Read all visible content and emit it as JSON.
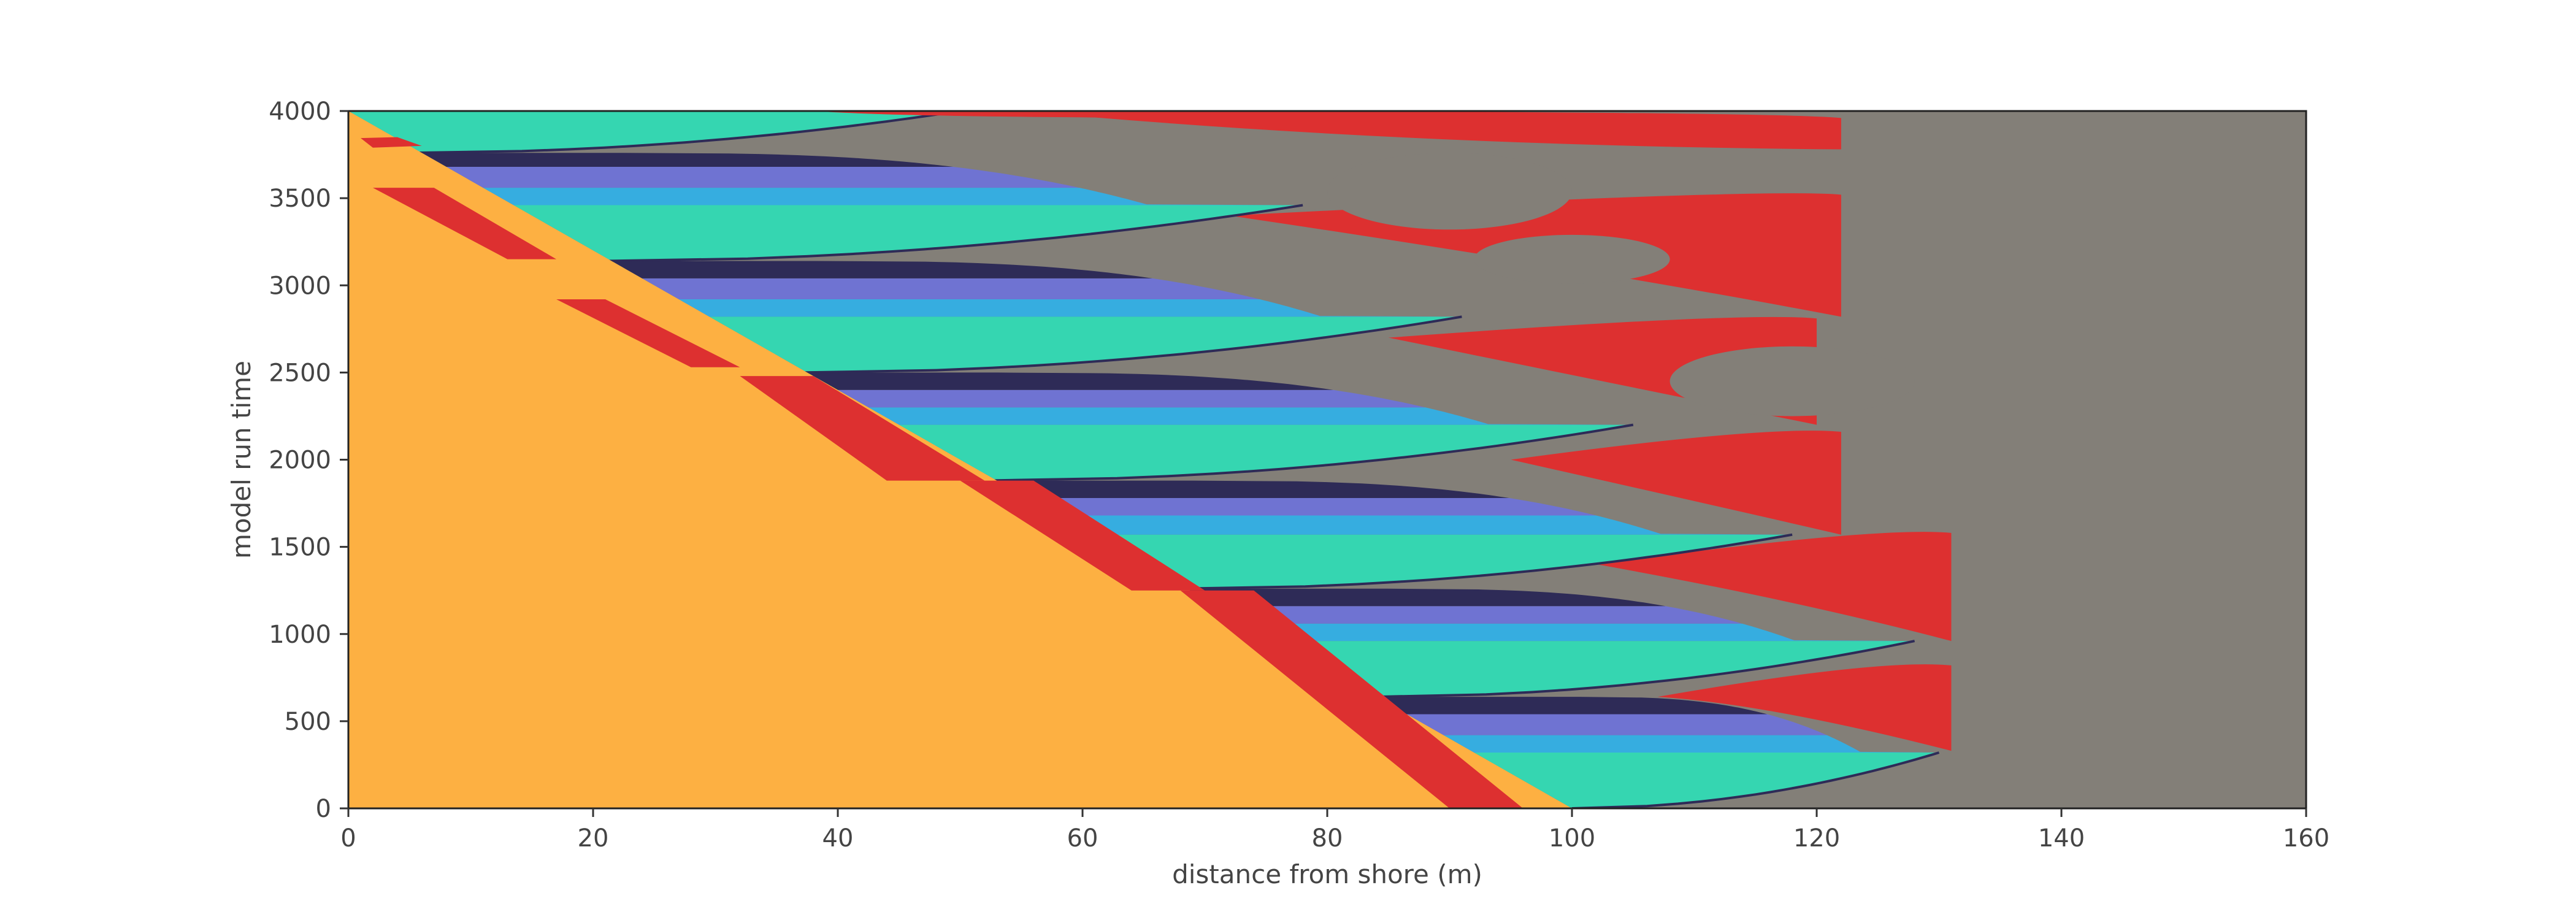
{
  "chart_data": {
    "type": "heatmap",
    "title": "",
    "xlabel": "distance from shore (m)",
    "ylabel": "model run time",
    "xlim": [
      0,
      160
    ],
    "ylim": [
      0,
      4000
    ],
    "xticks": [
      0,
      20,
      40,
      60,
      80,
      100,
      120,
      140,
      160
    ],
    "yticks": [
      0,
      500,
      1000,
      1500,
      2000,
      2500,
      3000,
      3500,
      4000
    ],
    "grid": false,
    "legend": "none",
    "colors": {
      "sand": "#fdb042",
      "red": "#dd3030",
      "teal": "#35d6b1",
      "sky": "#36ade0",
      "lavender": "#6f73d2",
      "navy": "#2e2b57",
      "gray": "#837f78",
      "speckle": "#9aa0a0"
    },
    "background_color": "gray",
    "slope_boundary": {
      "points": [
        [
          0,
          4000
        ],
        [
          100,
          0
        ]
      ],
      "color": "sand"
    },
    "shore_bands": [
      {
        "color": "red",
        "points": [
          [
            1,
            3845
          ],
          [
            4,
            3850
          ],
          [
            6,
            3800
          ],
          [
            2,
            3790
          ]
        ]
      },
      {
        "color": "red",
        "points": [
          [
            2,
            3560
          ],
          [
            7,
            3560
          ],
          [
            17,
            3150
          ],
          [
            13,
            3150
          ]
        ]
      },
      {
        "color": "red",
        "points": [
          [
            17,
            2920
          ],
          [
            21,
            2920
          ],
          [
            32,
            2530
          ],
          [
            28,
            2530
          ]
        ]
      },
      {
        "color": "red",
        "points": [
          [
            32,
            2480
          ],
          [
            38,
            2480
          ],
          [
            52,
            1880
          ],
          [
            44,
            1880
          ]
        ]
      },
      {
        "color": "red",
        "points": [
          [
            50,
            1880
          ],
          [
            56,
            1880
          ],
          [
            70,
            1250
          ],
          [
            64,
            1250
          ]
        ]
      },
      {
        "color": "red",
        "points": [
          [
            68,
            1250
          ],
          [
            74,
            1250
          ],
          [
            96,
            0
          ],
          [
            90,
            0
          ]
        ]
      }
    ],
    "cycles": [
      {
        "start": [
          100,
          0
        ],
        "end": [
          130,
          320
        ],
        "top": 640,
        "stripes": [
          {
            "color": "teal",
            "y0": 0,
            "y1": 320
          },
          {
            "color": "sky",
            "y0": 320,
            "y1": 420
          },
          {
            "color": "lavender",
            "y0": 420,
            "y1": 540
          },
          {
            "color": "navy",
            "y0": 540,
            "y1": 640
          }
        ],
        "red_lobe": [
          [
            107,
            640
          ],
          [
            131,
            860
          ],
          [
            131,
            330
          ],
          [
            110,
            600
          ]
        ]
      },
      {
        "start": [
          84,
          640
        ],
        "end": [
          128,
          960
        ],
        "top": 1260,
        "stripes": [
          {
            "color": "teal",
            "y0": 640,
            "y1": 960
          },
          {
            "color": "sky",
            "y0": 960,
            "y1": 1060
          },
          {
            "color": "lavender",
            "y0": 1060,
            "y1": 1160
          },
          {
            "color": "navy",
            "y0": 1160,
            "y1": 1260
          }
        ],
        "red_lobe": [
          [
            102,
            1400
          ],
          [
            131,
            1620
          ],
          [
            131,
            960
          ],
          [
            112,
            1200
          ]
        ]
      },
      {
        "start": [
          68,
          1260
        ],
        "end": [
          118,
          1570
        ],
        "top": 1880,
        "stripes": [
          {
            "color": "teal",
            "y0": 1260,
            "y1": 1570
          },
          {
            "color": "sky",
            "y0": 1570,
            "y1": 1680
          },
          {
            "color": "lavender",
            "y0": 1680,
            "y1": 1780
          },
          {
            "color": "navy",
            "y0": 1780,
            "y1": 1880
          }
        ],
        "red_lobe": [
          [
            95,
            2000
          ],
          [
            122,
            2200
          ],
          [
            122,
            1570
          ],
          [
            108,
            1700
          ]
        ]
      },
      {
        "start": [
          52,
          1880
        ],
        "end": [
          105,
          2200
        ],
        "top": 2500,
        "stripes": [
          {
            "color": "teal",
            "y0": 1880,
            "y1": 2200
          },
          {
            "color": "sky",
            "y0": 2200,
            "y1": 2300
          },
          {
            "color": "lavender",
            "y0": 2300,
            "y1": 2400
          },
          {
            "color": "navy",
            "y0": 2400,
            "y1": 2500
          }
        ],
        "red_lobe": [
          [
            85,
            2700
          ],
          [
            120,
            2850
          ],
          [
            120,
            2200
          ],
          [
            100,
            2400
          ]
        ]
      },
      {
        "start": [
          37,
          2500
        ],
        "end": [
          91,
          2820
        ],
        "top": 3140,
        "stripes": [
          {
            "color": "teal",
            "y0": 2500,
            "y1": 2820
          },
          {
            "color": "sky",
            "y0": 2820,
            "y1": 2920
          },
          {
            "color": "lavender",
            "y0": 2920,
            "y1": 3040
          },
          {
            "color": "navy",
            "y0": 3040,
            "y1": 3140
          }
        ],
        "red_lobe": [
          [
            72,
            3400
          ],
          [
            122,
            3560
          ],
          [
            122,
            2820
          ],
          [
            95,
            3100
          ]
        ]
      },
      {
        "start": [
          21,
          3140
        ],
        "end": [
          78,
          3460
        ],
        "top": 3760,
        "stripes": [
          {
            "color": "teal",
            "y0": 3140,
            "y1": 3460
          },
          {
            "color": "sky",
            "y0": 3460,
            "y1": 3560
          },
          {
            "color": "lavender",
            "y0": 3560,
            "y1": 3680
          },
          {
            "color": "navy",
            "y0": 3680,
            "y1": 3760
          }
        ],
        "red_lobe": [
          [
            55,
            4000
          ],
          [
            122,
            4000
          ],
          [
            122,
            3780
          ],
          [
            80,
            3800
          ]
        ]
      },
      {
        "start": [
          5,
          3760
        ],
        "end": [
          50,
          4000
        ],
        "top": 4000,
        "stripes": [
          {
            "color": "teal",
            "y0": 3760,
            "y1": 4000
          }
        ],
        "red_lobe": [
          [
            38,
            4000
          ],
          [
            76,
            4000
          ],
          [
            76,
            3960
          ],
          [
            40,
            3960
          ]
        ]
      }
    ],
    "gray_blobs": [
      {
        "cx": 90,
        "cy": 3540,
        "rx": 10,
        "ry": 220
      },
      {
        "cx": 100,
        "cy": 3150,
        "rx": 8,
        "ry": 140
      },
      {
        "cx": 118,
        "cy": 2450,
        "rx": 10,
        "ry": 200
      }
    ]
  }
}
